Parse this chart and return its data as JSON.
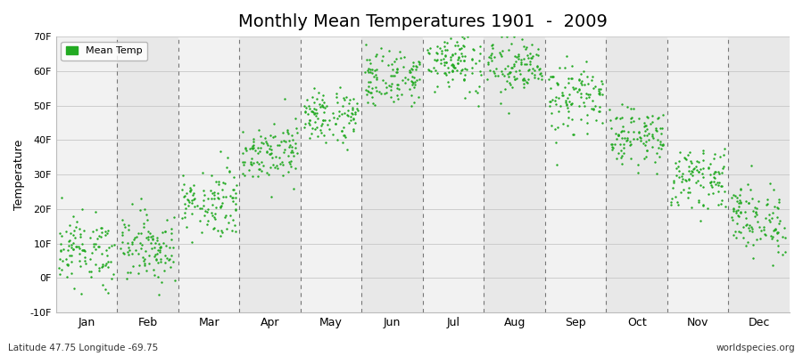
{
  "title": "Monthly Mean Temperatures 1901  -  2009",
  "ylabel": "Temperature",
  "ylim": [
    -10,
    70
  ],
  "yticks": [
    -10,
    0,
    10,
    20,
    30,
    40,
    50,
    60,
    70
  ],
  "ytick_labels": [
    "-10F",
    "0F",
    "10F",
    "20F",
    "30F",
    "40F",
    "50F",
    "60F",
    "70F"
  ],
  "months": [
    "Jan",
    "Feb",
    "Mar",
    "Apr",
    "May",
    "Jun",
    "Jul",
    "Aug",
    "Sep",
    "Oct",
    "Nov",
    "Dec"
  ],
  "dot_color": "#22aa22",
  "bg_light": "#f2f2f2",
  "bg_dark": "#e8e8e8",
  "fig_bg": "#ffffff",
  "title_fontsize": 14,
  "label_fontsize": 9,
  "legend_label": "Mean Temp",
  "bottom_left": "Latitude 47.75 Longitude -69.75",
  "bottom_right": "worldspecies.org",
  "monthly_mean": [
    8,
    9,
    22,
    37,
    47,
    58,
    63,
    61,
    52,
    41,
    29,
    17
  ],
  "monthly_std": [
    5,
    5,
    5,
    4,
    4,
    4,
    4,
    4,
    5,
    4,
    4,
    5
  ],
  "n_points": 109
}
